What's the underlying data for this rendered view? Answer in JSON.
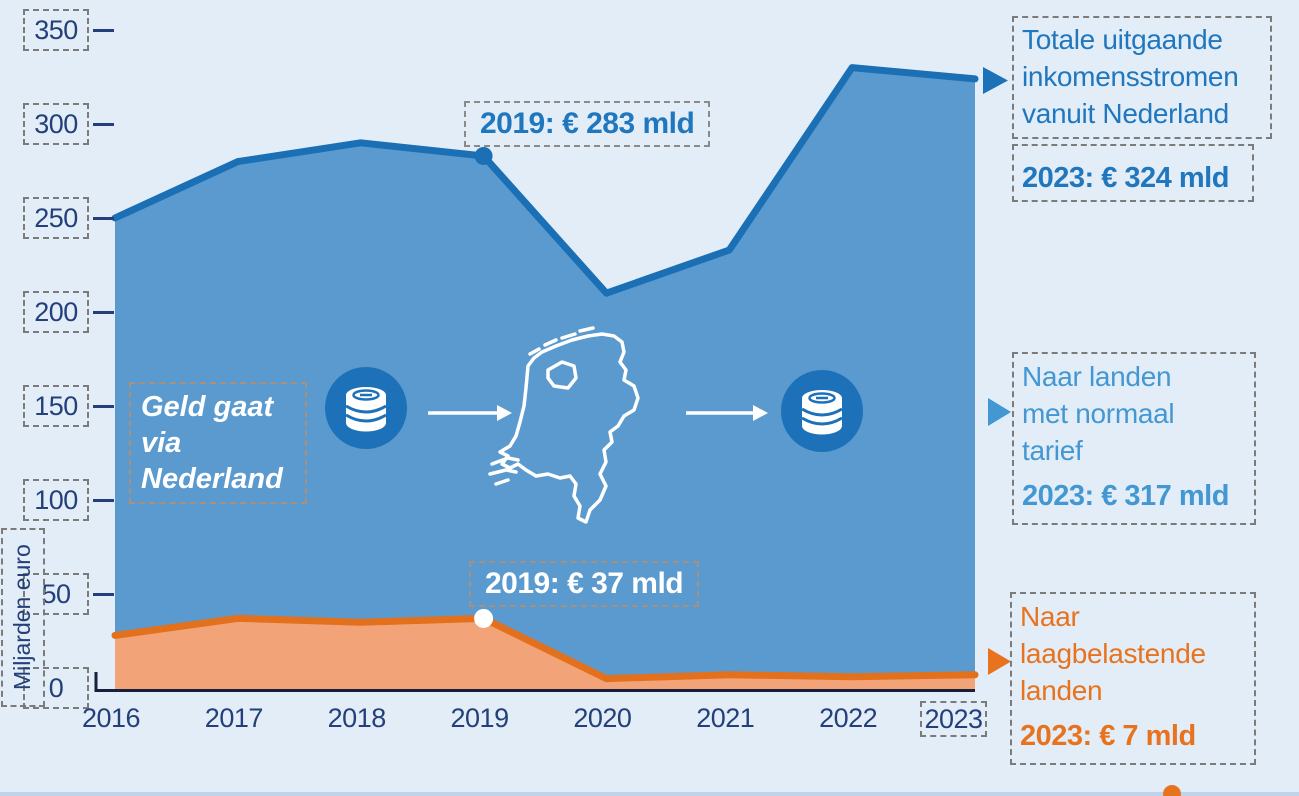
{
  "chart_data": {
    "type": "area",
    "x": [
      "2016",
      "2017",
      "2018",
      "2019",
      "2020",
      "2021",
      "2022",
      "2023"
    ],
    "series": [
      {
        "name": "Totale uitgaande inkomensstromen vanuit Nederland",
        "values": [
          250,
          280,
          290,
          283,
          210,
          233,
          330,
          324
        ],
        "line_color": "#1b6fb5",
        "fill_color": "#5b9ace"
      },
      {
        "name": "Naar laagbelastende landen",
        "values": [
          28,
          37,
          35,
          37,
          5,
          7,
          6,
          7
        ],
        "line_color": "#e2701c",
        "fill_color": "#f2a478"
      }
    ],
    "ylabel": "Miljarden euro",
    "yticks": [
      350,
      300,
      250,
      200,
      150,
      100,
      50,
      0
    ],
    "ylim": [
      0,
      350
    ],
    "grid": false,
    "legend_position": "right",
    "point_annotations": [
      {
        "series": 0,
        "index": 3,
        "label": "2019: € 283 mld",
        "marker": "filled-blue-dot"
      },
      {
        "series": 1,
        "index": 3,
        "label": "2019: € 37 mld",
        "marker": "white-dot"
      }
    ]
  },
  "labels": {
    "ylabel": "Miljarden euro",
    "flow_caption": "Geld gaat via Nederland",
    "annotation_total_2019": "2019: € 283 mld",
    "annotation_low_2019": "2019: € 37 mld"
  },
  "legend": {
    "total": {
      "title": "Totale uitgaande inkomensstromen vanuit Nederland",
      "value": "2023: € 324 mld"
    },
    "normal_rate": {
      "title": "Naar landen met normaal tarief",
      "value": "2023: € 317 mld"
    },
    "low_tax": {
      "title": "Naar laagbelastende landen",
      "value": "2023: € 7 mld"
    }
  },
  "icons": {
    "money_icon": "coin-stack-in-circle",
    "map_icon": "netherlands-outline",
    "flow_arrow": "white-right-arrow",
    "pointer_total": "blue-right-triangle",
    "pointer_normal": "lightblue-right-triangle",
    "pointer_low": "orange-right-triangle",
    "footer_dot": "orange-dot"
  },
  "colors": {
    "background": "#e2edf7",
    "total_line": "#1b6fb5",
    "total_fill": "#5b9ace",
    "low_line": "#e2701c",
    "low_fill": "#f2a478",
    "axis_text": "#24407a",
    "blue_text": "#2077be",
    "lightblue_text": "#4397d2",
    "orange_text": "#e8731f",
    "footer_bar": "#bfd4e9"
  }
}
